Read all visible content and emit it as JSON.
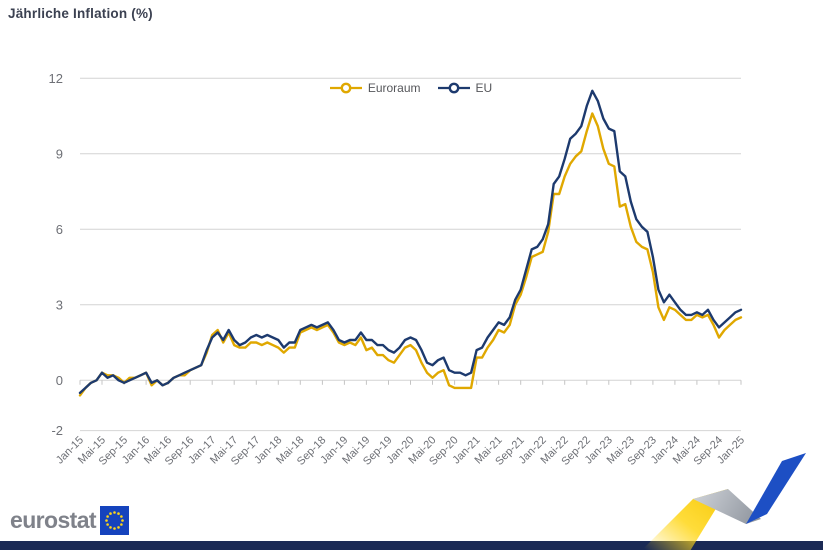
{
  "footer": {
    "brand_text": "eurostat"
  },
  "colors": {
    "euroraum_line": "#E0A800",
    "eu_line": "#1D3A6E",
    "title_text": "#3B4151",
    "axis_text": "#6E7076",
    "legend_text": "#55565A",
    "gridline": "#D4D4D4",
    "tick_mark": "#C4C4C4",
    "footer_bar": "#1B2A55",
    "brand_text": "#7F828A",
    "eu_flag_blue": "#1543BD",
    "eu_flag_stars": "#FFD617",
    "ribbon_yellow": "#FFD617",
    "ribbon_blue": "#1D4FC4",
    "ribbon_gray": "#9AA0A9"
  },
  "chart_data": {
    "type": "line",
    "title": "Jährliche Inflation (%)",
    "xlabel": "",
    "ylabel": "",
    "ylim": [
      -2,
      12
    ],
    "yticks": [
      12,
      9,
      6,
      3,
      0,
      -2
    ],
    "grid": true,
    "legend_position": "top-center",
    "x_unit": "month",
    "x_range": [
      "Jan-15",
      "Jan-25"
    ],
    "label_every_n_months": 4,
    "x_tick_labels": [
      "Jan-15",
      "Mai-15",
      "Sep-15",
      "Jan-16",
      "Mai-16",
      "Sep-16",
      "Jan-17",
      "Mai-17",
      "Sep-17",
      "Jan-18",
      "Mai-18",
      "Sep-18",
      "Jan-19",
      "Mai-19",
      "Sep-19",
      "Jan-20",
      "Mai-20",
      "Sep-20",
      "Jan-21",
      "Mai-21",
      "Sep-21",
      "Jan-22",
      "Mai-22",
      "Sep-22",
      "Jan-23",
      "Mai-23",
      "Sep-23",
      "Jan-24",
      "Mai-24",
      "Sep-24",
      "Jan-25"
    ],
    "series": [
      {
        "name": "Euroraum",
        "color": "#E0A800",
        "values": [
          -0.6,
          -0.3,
          -0.1,
          0.0,
          0.3,
          0.2,
          0.2,
          0.1,
          -0.1,
          0.1,
          0.1,
          0.2,
          0.3,
          -0.2,
          0.0,
          -0.2,
          -0.1,
          0.1,
          0.2,
          0.2,
          0.4,
          0.5,
          0.6,
          1.1,
          1.8,
          2.0,
          1.5,
          1.9,
          1.4,
          1.3,
          1.3,
          1.5,
          1.5,
          1.4,
          1.5,
          1.4,
          1.3,
          1.1,
          1.3,
          1.3,
          1.9,
          2.0,
          2.1,
          2.0,
          2.1,
          2.2,
          1.9,
          1.5,
          1.4,
          1.5,
          1.4,
          1.7,
          1.2,
          1.3,
          1.0,
          1.0,
          0.8,
          0.7,
          1.0,
          1.3,
          1.4,
          1.2,
          0.7,
          0.3,
          0.1,
          0.3,
          0.4,
          -0.2,
          -0.3,
          -0.3,
          -0.3,
          -0.3,
          0.9,
          0.9,
          1.3,
          1.6,
          2.0,
          1.9,
          2.2,
          3.0,
          3.4,
          4.1,
          4.9,
          5.0,
          5.1,
          5.9,
          7.4,
          7.4,
          8.1,
          8.6,
          8.9,
          9.1,
          9.9,
          10.6,
          10.1,
          9.2,
          8.6,
          8.5,
          6.9,
          7.0,
          6.1,
          5.5,
          5.3,
          5.2,
          4.3,
          2.9,
          2.4,
          2.9,
          2.8,
          2.6,
          2.4,
          2.4,
          2.6,
          2.5,
          2.6,
          2.2,
          1.7,
          2.0,
          2.2,
          2.4,
          2.5
        ]
      },
      {
        "name": "EU",
        "color": "#1D3A6E",
        "values": [
          -0.5,
          -0.3,
          -0.1,
          0.0,
          0.3,
          0.1,
          0.2,
          0.0,
          -0.1,
          0.0,
          0.1,
          0.2,
          0.3,
          -0.1,
          0.0,
          -0.2,
          -0.1,
          0.1,
          0.2,
          0.3,
          0.4,
          0.5,
          0.6,
          1.2,
          1.7,
          1.9,
          1.6,
          2.0,
          1.6,
          1.4,
          1.5,
          1.7,
          1.8,
          1.7,
          1.8,
          1.7,
          1.6,
          1.3,
          1.5,
          1.5,
          2.0,
          2.1,
          2.2,
          2.1,
          2.2,
          2.3,
          2.0,
          1.6,
          1.5,
          1.6,
          1.6,
          1.9,
          1.6,
          1.6,
          1.4,
          1.4,
          1.2,
          1.1,
          1.3,
          1.6,
          1.7,
          1.6,
          1.2,
          0.7,
          0.6,
          0.8,
          0.9,
          0.4,
          0.3,
          0.3,
          0.2,
          0.3,
          1.2,
          1.3,
          1.7,
          2.0,
          2.3,
          2.2,
          2.5,
          3.2,
          3.6,
          4.4,
          5.2,
          5.3,
          5.6,
          6.2,
          7.8,
          8.1,
          8.8,
          9.6,
          9.8,
          10.1,
          10.9,
          11.5,
          11.1,
          10.4,
          10.0,
          9.9,
          8.3,
          8.1,
          7.1,
          6.4,
          6.1,
          5.9,
          4.9,
          3.6,
          3.1,
          3.4,
          3.1,
          2.8,
          2.6,
          2.6,
          2.7,
          2.6,
          2.8,
          2.4,
          2.1,
          2.3,
          2.5,
          2.7,
          2.8
        ]
      }
    ]
  }
}
